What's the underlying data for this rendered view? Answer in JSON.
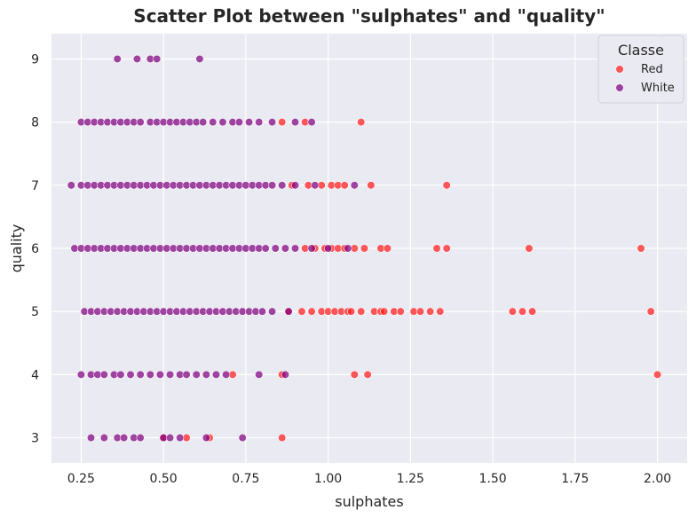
{
  "chart_data": {
    "type": "scatter",
    "title": "Scatter Plot between \"sulphates\" and \"quality\"",
    "xlabel": "sulphates",
    "ylabel": "quality",
    "xlim": [
      0.16,
      2.09
    ],
    "ylim": [
      2.6,
      9.4
    ],
    "xticks": [
      "0.25",
      "0.50",
      "0.75",
      "1.00",
      "1.25",
      "1.50",
      "1.75",
      "2.00"
    ],
    "yticks": [
      "3",
      "4",
      "5",
      "6",
      "7",
      "8",
      "9"
    ],
    "grid": true,
    "background": "#eaeaf2",
    "legend": {
      "title": "Classe",
      "placement": "top-right"
    },
    "series": [
      {
        "name": "Red",
        "color": "#ff1a1a",
        "points": [
          [
            0.5,
            3
          ],
          [
            0.57,
            3
          ],
          [
            0.64,
            3
          ],
          [
            0.86,
            3
          ],
          [
            0.71,
            4
          ],
          [
            0.86,
            4
          ],
          [
            1.08,
            4
          ],
          [
            1.12,
            4
          ],
          [
            2.0,
            4
          ],
          [
            0.88,
            5
          ],
          [
            0.92,
            5
          ],
          [
            0.95,
            5
          ],
          [
            0.98,
            5
          ],
          [
            1.0,
            5
          ],
          [
            1.02,
            5
          ],
          [
            1.04,
            5
          ],
          [
            1.06,
            5
          ],
          [
            1.07,
            5
          ],
          [
            1.1,
            5
          ],
          [
            1.14,
            5
          ],
          [
            1.16,
            5
          ],
          [
            1.17,
            5
          ],
          [
            1.2,
            5
          ],
          [
            1.22,
            5
          ],
          [
            1.26,
            5
          ],
          [
            1.28,
            5
          ],
          [
            1.31,
            5
          ],
          [
            1.34,
            5
          ],
          [
            1.56,
            5
          ],
          [
            1.59,
            5
          ],
          [
            1.62,
            5
          ],
          [
            1.98,
            5
          ],
          [
            0.93,
            6
          ],
          [
            0.96,
            6
          ],
          [
            0.99,
            6
          ],
          [
            1.01,
            6
          ],
          [
            1.03,
            6
          ],
          [
            1.05,
            6
          ],
          [
            1.08,
            6
          ],
          [
            1.11,
            6
          ],
          [
            1.16,
            6
          ],
          [
            1.18,
            6
          ],
          [
            1.33,
            6
          ],
          [
            1.36,
            6
          ],
          [
            1.61,
            6
          ],
          [
            1.95,
            6
          ],
          [
            0.89,
            7
          ],
          [
            0.94,
            7
          ],
          [
            0.98,
            7
          ],
          [
            1.01,
            7
          ],
          [
            1.03,
            7
          ],
          [
            1.05,
            7
          ],
          [
            1.13,
            7
          ],
          [
            1.36,
            7
          ],
          [
            0.86,
            8
          ],
          [
            0.93,
            8
          ],
          [
            1.1,
            8
          ]
        ]
      },
      {
        "name": "White",
        "color": "#800080",
        "points": [
          [
            0.28,
            3
          ],
          [
            0.32,
            3
          ],
          [
            0.36,
            3
          ],
          [
            0.38,
            3
          ],
          [
            0.41,
            3
          ],
          [
            0.43,
            3
          ],
          [
            0.5,
            3
          ],
          [
            0.52,
            3
          ],
          [
            0.55,
            3
          ],
          [
            0.63,
            3
          ],
          [
            0.74,
            3
          ],
          [
            0.25,
            4
          ],
          [
            0.28,
            4
          ],
          [
            0.3,
            4
          ],
          [
            0.32,
            4
          ],
          [
            0.35,
            4
          ],
          [
            0.37,
            4
          ],
          [
            0.4,
            4
          ],
          [
            0.43,
            4
          ],
          [
            0.46,
            4
          ],
          [
            0.49,
            4
          ],
          [
            0.52,
            4
          ],
          [
            0.55,
            4
          ],
          [
            0.57,
            4
          ],
          [
            0.6,
            4
          ],
          [
            0.63,
            4
          ],
          [
            0.66,
            4
          ],
          [
            0.69,
            4
          ],
          [
            0.79,
            4
          ],
          [
            0.87,
            4
          ],
          [
            0.26,
            5
          ],
          [
            0.28,
            5
          ],
          [
            0.3,
            5
          ],
          [
            0.32,
            5
          ],
          [
            0.34,
            5
          ],
          [
            0.36,
            5
          ],
          [
            0.38,
            5
          ],
          [
            0.4,
            5
          ],
          [
            0.42,
            5
          ],
          [
            0.44,
            5
          ],
          [
            0.46,
            5
          ],
          [
            0.48,
            5
          ],
          [
            0.5,
            5
          ],
          [
            0.52,
            5
          ],
          [
            0.54,
            5
          ],
          [
            0.56,
            5
          ],
          [
            0.58,
            5
          ],
          [
            0.6,
            5
          ],
          [
            0.62,
            5
          ],
          [
            0.64,
            5
          ],
          [
            0.66,
            5
          ],
          [
            0.68,
            5
          ],
          [
            0.7,
            5
          ],
          [
            0.72,
            5
          ],
          [
            0.74,
            5
          ],
          [
            0.76,
            5
          ],
          [
            0.78,
            5
          ],
          [
            0.8,
            5
          ],
          [
            0.83,
            5
          ],
          [
            0.88,
            5
          ],
          [
            0.23,
            6
          ],
          [
            0.25,
            6
          ],
          [
            0.27,
            6
          ],
          [
            0.29,
            6
          ],
          [
            0.31,
            6
          ],
          [
            0.33,
            6
          ],
          [
            0.35,
            6
          ],
          [
            0.37,
            6
          ],
          [
            0.39,
            6
          ],
          [
            0.41,
            6
          ],
          [
            0.43,
            6
          ],
          [
            0.45,
            6
          ],
          [
            0.47,
            6
          ],
          [
            0.49,
            6
          ],
          [
            0.51,
            6
          ],
          [
            0.53,
            6
          ],
          [
            0.55,
            6
          ],
          [
            0.57,
            6
          ],
          [
            0.59,
            6
          ],
          [
            0.61,
            6
          ],
          [
            0.63,
            6
          ],
          [
            0.65,
            6
          ],
          [
            0.67,
            6
          ],
          [
            0.69,
            6
          ],
          [
            0.71,
            6
          ],
          [
            0.73,
            6
          ],
          [
            0.75,
            6
          ],
          [
            0.77,
            6
          ],
          [
            0.79,
            6
          ],
          [
            0.81,
            6
          ],
          [
            0.84,
            6
          ],
          [
            0.87,
            6
          ],
          [
            0.9,
            6
          ],
          [
            0.95,
            6
          ],
          [
            1.0,
            6
          ],
          [
            1.06,
            6
          ],
          [
            0.22,
            7
          ],
          [
            0.25,
            7
          ],
          [
            0.27,
            7
          ],
          [
            0.29,
            7
          ],
          [
            0.31,
            7
          ],
          [
            0.33,
            7
          ],
          [
            0.35,
            7
          ],
          [
            0.37,
            7
          ],
          [
            0.39,
            7
          ],
          [
            0.41,
            7
          ],
          [
            0.43,
            7
          ],
          [
            0.45,
            7
          ],
          [
            0.47,
            7
          ],
          [
            0.49,
            7
          ],
          [
            0.51,
            7
          ],
          [
            0.53,
            7
          ],
          [
            0.55,
            7
          ],
          [
            0.57,
            7
          ],
          [
            0.59,
            7
          ],
          [
            0.61,
            7
          ],
          [
            0.63,
            7
          ],
          [
            0.65,
            7
          ],
          [
            0.67,
            7
          ],
          [
            0.69,
            7
          ],
          [
            0.71,
            7
          ],
          [
            0.73,
            7
          ],
          [
            0.75,
            7
          ],
          [
            0.77,
            7
          ],
          [
            0.79,
            7
          ],
          [
            0.81,
            7
          ],
          [
            0.83,
            7
          ],
          [
            0.86,
            7
          ],
          [
            0.9,
            7
          ],
          [
            0.96,
            7
          ],
          [
            1.08,
            7
          ],
          [
            0.25,
            8
          ],
          [
            0.27,
            8
          ],
          [
            0.29,
            8
          ],
          [
            0.31,
            8
          ],
          [
            0.33,
            8
          ],
          [
            0.35,
            8
          ],
          [
            0.37,
            8
          ],
          [
            0.39,
            8
          ],
          [
            0.41,
            8
          ],
          [
            0.43,
            8
          ],
          [
            0.46,
            8
          ],
          [
            0.48,
            8
          ],
          [
            0.5,
            8
          ],
          [
            0.52,
            8
          ],
          [
            0.54,
            8
          ],
          [
            0.56,
            8
          ],
          [
            0.58,
            8
          ],
          [
            0.6,
            8
          ],
          [
            0.62,
            8
          ],
          [
            0.65,
            8
          ],
          [
            0.68,
            8
          ],
          [
            0.71,
            8
          ],
          [
            0.73,
            8
          ],
          [
            0.76,
            8
          ],
          [
            0.79,
            8
          ],
          [
            0.83,
            8
          ],
          [
            0.9,
            8
          ],
          [
            0.95,
            8
          ],
          [
            0.36,
            9
          ],
          [
            0.42,
            9
          ],
          [
            0.46,
            9
          ],
          [
            0.48,
            9
          ],
          [
            0.61,
            9
          ]
        ]
      }
    ]
  }
}
